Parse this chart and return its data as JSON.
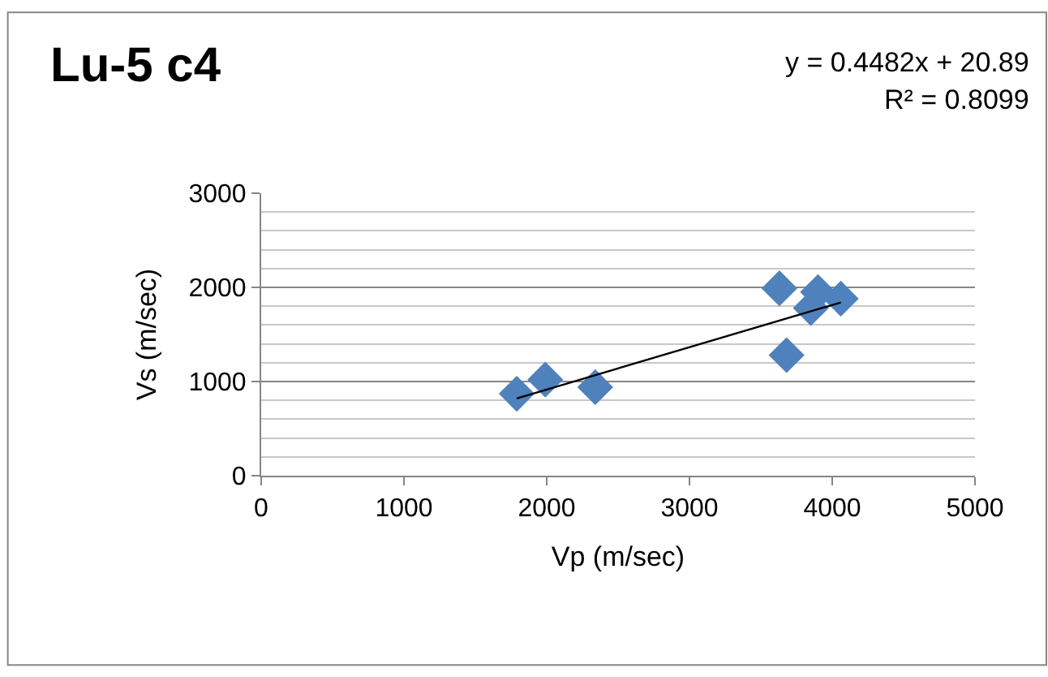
{
  "chart_data": {
    "type": "scatter",
    "title": "Lu-5 c4",
    "xlabel": "Vp (m/sec)",
    "ylabel": "Vs (m/sec)",
    "annotations": [
      "y = 0.4482x + 20.89",
      "R² = 0.8099"
    ],
    "series": [
      {
        "color": "#4f81bd",
        "marker": "diamond",
        "x": [
          1790,
          1990,
          2340,
          3630,
          3680,
          3900,
          3850,
          4060
        ],
        "values": [
          870,
          1020,
          940,
          1990,
          1280,
          1950,
          1780,
          1880
        ]
      },
      {
        "type": "line",
        "color": "#000000",
        "marker": "none",
        "line_style": "solid",
        "x": [
          1790,
          4060
        ],
        "values": [
          820,
          1840
        ]
      }
    ],
    "xlim": [
      0,
      5000
    ],
    "xticks": [
      0,
      1000,
      2000,
      3000,
      4000,
      5000
    ],
    "ylim": [
      0,
      3000
    ],
    "yticks": [
      0,
      1000,
      2000,
      3000
    ],
    "grid": "y"
  }
}
